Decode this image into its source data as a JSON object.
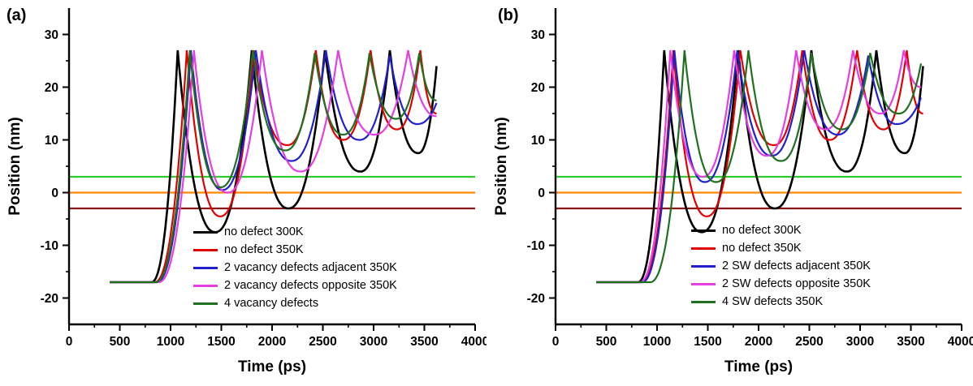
{
  "figure": {
    "background": "#ffffff"
  },
  "panels": [
    {
      "label": "(a)"
    },
    {
      "label": "(b)"
    }
  ],
  "chart_data": [
    {
      "type": "line",
      "title": "",
      "xlabel": "Time (ps)",
      "ylabel": "Position (nm)",
      "xlim": [
        0,
        4000
      ],
      "ylim": [
        -25,
        35
      ],
      "xticks": [
        0,
        500,
        1000,
        1500,
        2000,
        2500,
        3000,
        3500,
        4000
      ],
      "yticks": [
        -20,
        -10,
        0,
        10,
        20,
        30
      ],
      "x_minor_step": 250,
      "y_minor_step": 5,
      "grid": false,
      "legend_position": "lower-right-inside",
      "reference_lines": [
        {
          "y": 3,
          "color": "#2ecc2e",
          "name": "upper-threshold-line"
        },
        {
          "y": 0,
          "color": "#ff8800",
          "name": "zero-line"
        },
        {
          "y": -3,
          "color": "#8b1515",
          "name": "lower-threshold-line"
        }
      ],
      "series": [
        {
          "name": "no defect 300K",
          "color": "#000000",
          "width": 2.6,
          "points": [
            [
              400,
              -17
            ],
            [
              810,
              -17
            ],
            [
              1070,
              27
            ],
            [
              1440,
              -7.5
            ],
            [
              1800,
              27
            ],
            [
              2160,
              -3
            ],
            [
              2520,
              27
            ],
            [
              2870,
              4
            ],
            [
              3160,
              27
            ],
            [
              3440,
              7.5
            ],
            [
              3620,
              24
            ]
          ]
        },
        {
          "name": "no defect 350K",
          "color": "#e00000",
          "width": 2.2,
          "points": [
            [
              400,
              -17
            ],
            [
              840,
              -17
            ],
            [
              1160,
              27
            ],
            [
              1490,
              -4.5
            ],
            [
              1820,
              27
            ],
            [
              2150,
              9
            ],
            [
              2430,
              27
            ],
            [
              2700,
              10
            ],
            [
              2970,
              27
            ],
            [
              3230,
              12
            ],
            [
              3460,
              27
            ],
            [
              3620,
              15
            ]
          ]
        },
        {
          "name": "2 vacancy defects adjacent 350K",
          "color": "#2020cc",
          "width": 2.2,
          "points": [
            [
              400,
              -17
            ],
            [
              860,
              -17
            ],
            [
              1200,
              27
            ],
            [
              1510,
              0.5
            ],
            [
              1840,
              27
            ],
            [
              2190,
              6
            ],
            [
              2530,
              27
            ],
            [
              2860,
              10
            ],
            [
              3160,
              26
            ],
            [
              3430,
              13
            ],
            [
              3620,
              17
            ]
          ]
        },
        {
          "name": "2 vacancy defects opposite 350K",
          "color": "#e33fe3",
          "width": 2.2,
          "points": [
            [
              400,
              -17
            ],
            [
              880,
              -17
            ],
            [
              1230,
              27
            ],
            [
              1560,
              0
            ],
            [
              1900,
              27
            ],
            [
              2280,
              4
            ],
            [
              2650,
              27
            ],
            [
              3010,
              11
            ],
            [
              3340,
              27
            ],
            [
              3620,
              14.5
            ]
          ]
        },
        {
          "name": "4 vacancy defects",
          "color": "#1f701f",
          "width": 2.2,
          "points": [
            [
              400,
              -17
            ],
            [
              850,
              -17
            ],
            [
              1190,
              27
            ],
            [
              1490,
              1
            ],
            [
              1810,
              27
            ],
            [
              2130,
              8
            ],
            [
              2420,
              26.5
            ],
            [
              2700,
              11
            ],
            [
              2960,
              26.5
            ],
            [
              3220,
              14
            ],
            [
              3450,
              26.5
            ],
            [
              3620,
              17.5
            ]
          ]
        }
      ]
    },
    {
      "type": "line",
      "title": "",
      "xlabel": "Time (ps)",
      "ylabel": "Position (nm)",
      "xlim": [
        0,
        4000
      ],
      "ylim": [
        -25,
        35
      ],
      "xticks": [
        0,
        500,
        1000,
        1500,
        2000,
        2500,
        3000,
        3500,
        4000
      ],
      "yticks": [
        -20,
        -10,
        0,
        10,
        20,
        30
      ],
      "x_minor_step": 250,
      "y_minor_step": 5,
      "grid": false,
      "legend_position": "lower-right-inside",
      "reference_lines": [
        {
          "y": 3,
          "color": "#2ecc2e",
          "name": "upper-threshold-line"
        },
        {
          "y": 0,
          "color": "#ff8800",
          "name": "zero-line"
        },
        {
          "y": -3,
          "color": "#8b1515",
          "name": "lower-threshold-line"
        }
      ],
      "series": [
        {
          "name": "no defect 300K",
          "color": "#000000",
          "width": 2.6,
          "points": [
            [
              400,
              -17
            ],
            [
              810,
              -17
            ],
            [
              1070,
              27
            ],
            [
              1440,
              -7.5
            ],
            [
              1800,
              27
            ],
            [
              2160,
              -3
            ],
            [
              2520,
              27
            ],
            [
              2870,
              4
            ],
            [
              3160,
              27
            ],
            [
              3440,
              7.5
            ],
            [
              3620,
              24
            ]
          ]
        },
        {
          "name": "no defect 350K",
          "color": "#e00000",
          "width": 2.2,
          "points": [
            [
              400,
              -17
            ],
            [
              840,
              -17
            ],
            [
              1160,
              27
            ],
            [
              1490,
              -4.5
            ],
            [
              1820,
              27
            ],
            [
              2150,
              9
            ],
            [
              2430,
              27
            ],
            [
              2700,
              10
            ],
            [
              2970,
              27
            ],
            [
              3230,
              12
            ],
            [
              3460,
              27
            ],
            [
              3620,
              15
            ]
          ]
        },
        {
          "name": "2 SW defects adjacent 350K",
          "color": "#2020cc",
          "width": 2.2,
          "points": [
            [
              400,
              -17
            ],
            [
              850,
              -17
            ],
            [
              1170,
              27
            ],
            [
              1470,
              2
            ],
            [
              1790,
              27
            ],
            [
              2130,
              7
            ],
            [
              2450,
              27
            ],
            [
              2780,
              11
            ],
            [
              3080,
              26
            ],
            [
              3360,
              13
            ],
            [
              3600,
              18
            ]
          ]
        },
        {
          "name": "2 SW defects opposite 350K",
          "color": "#e33fe3",
          "width": 2.2,
          "points": [
            [
              400,
              -17
            ],
            [
              830,
              -17
            ],
            [
              1130,
              27
            ],
            [
              1450,
              3
            ],
            [
              1760,
              27
            ],
            [
              2080,
              7
            ],
            [
              2370,
              27
            ],
            [
              2660,
              12
            ],
            [
              2930,
              27
            ],
            [
              3200,
              15
            ],
            [
              3430,
              27
            ],
            [
              3600,
              20
            ]
          ]
        },
        {
          "name": "4 SW defects 350K",
          "color": "#1f701f",
          "width": 2.2,
          "points": [
            [
              400,
              -17
            ],
            [
              930,
              -17
            ],
            [
              1270,
              27
            ],
            [
              1580,
              2
            ],
            [
              1900,
              27
            ],
            [
              2220,
              6
            ],
            [
              2520,
              26.5
            ],
            [
              2820,
              12
            ],
            [
              3100,
              26.5
            ],
            [
              3380,
              15
            ],
            [
              3600,
              24.5
            ]
          ]
        }
      ]
    }
  ]
}
